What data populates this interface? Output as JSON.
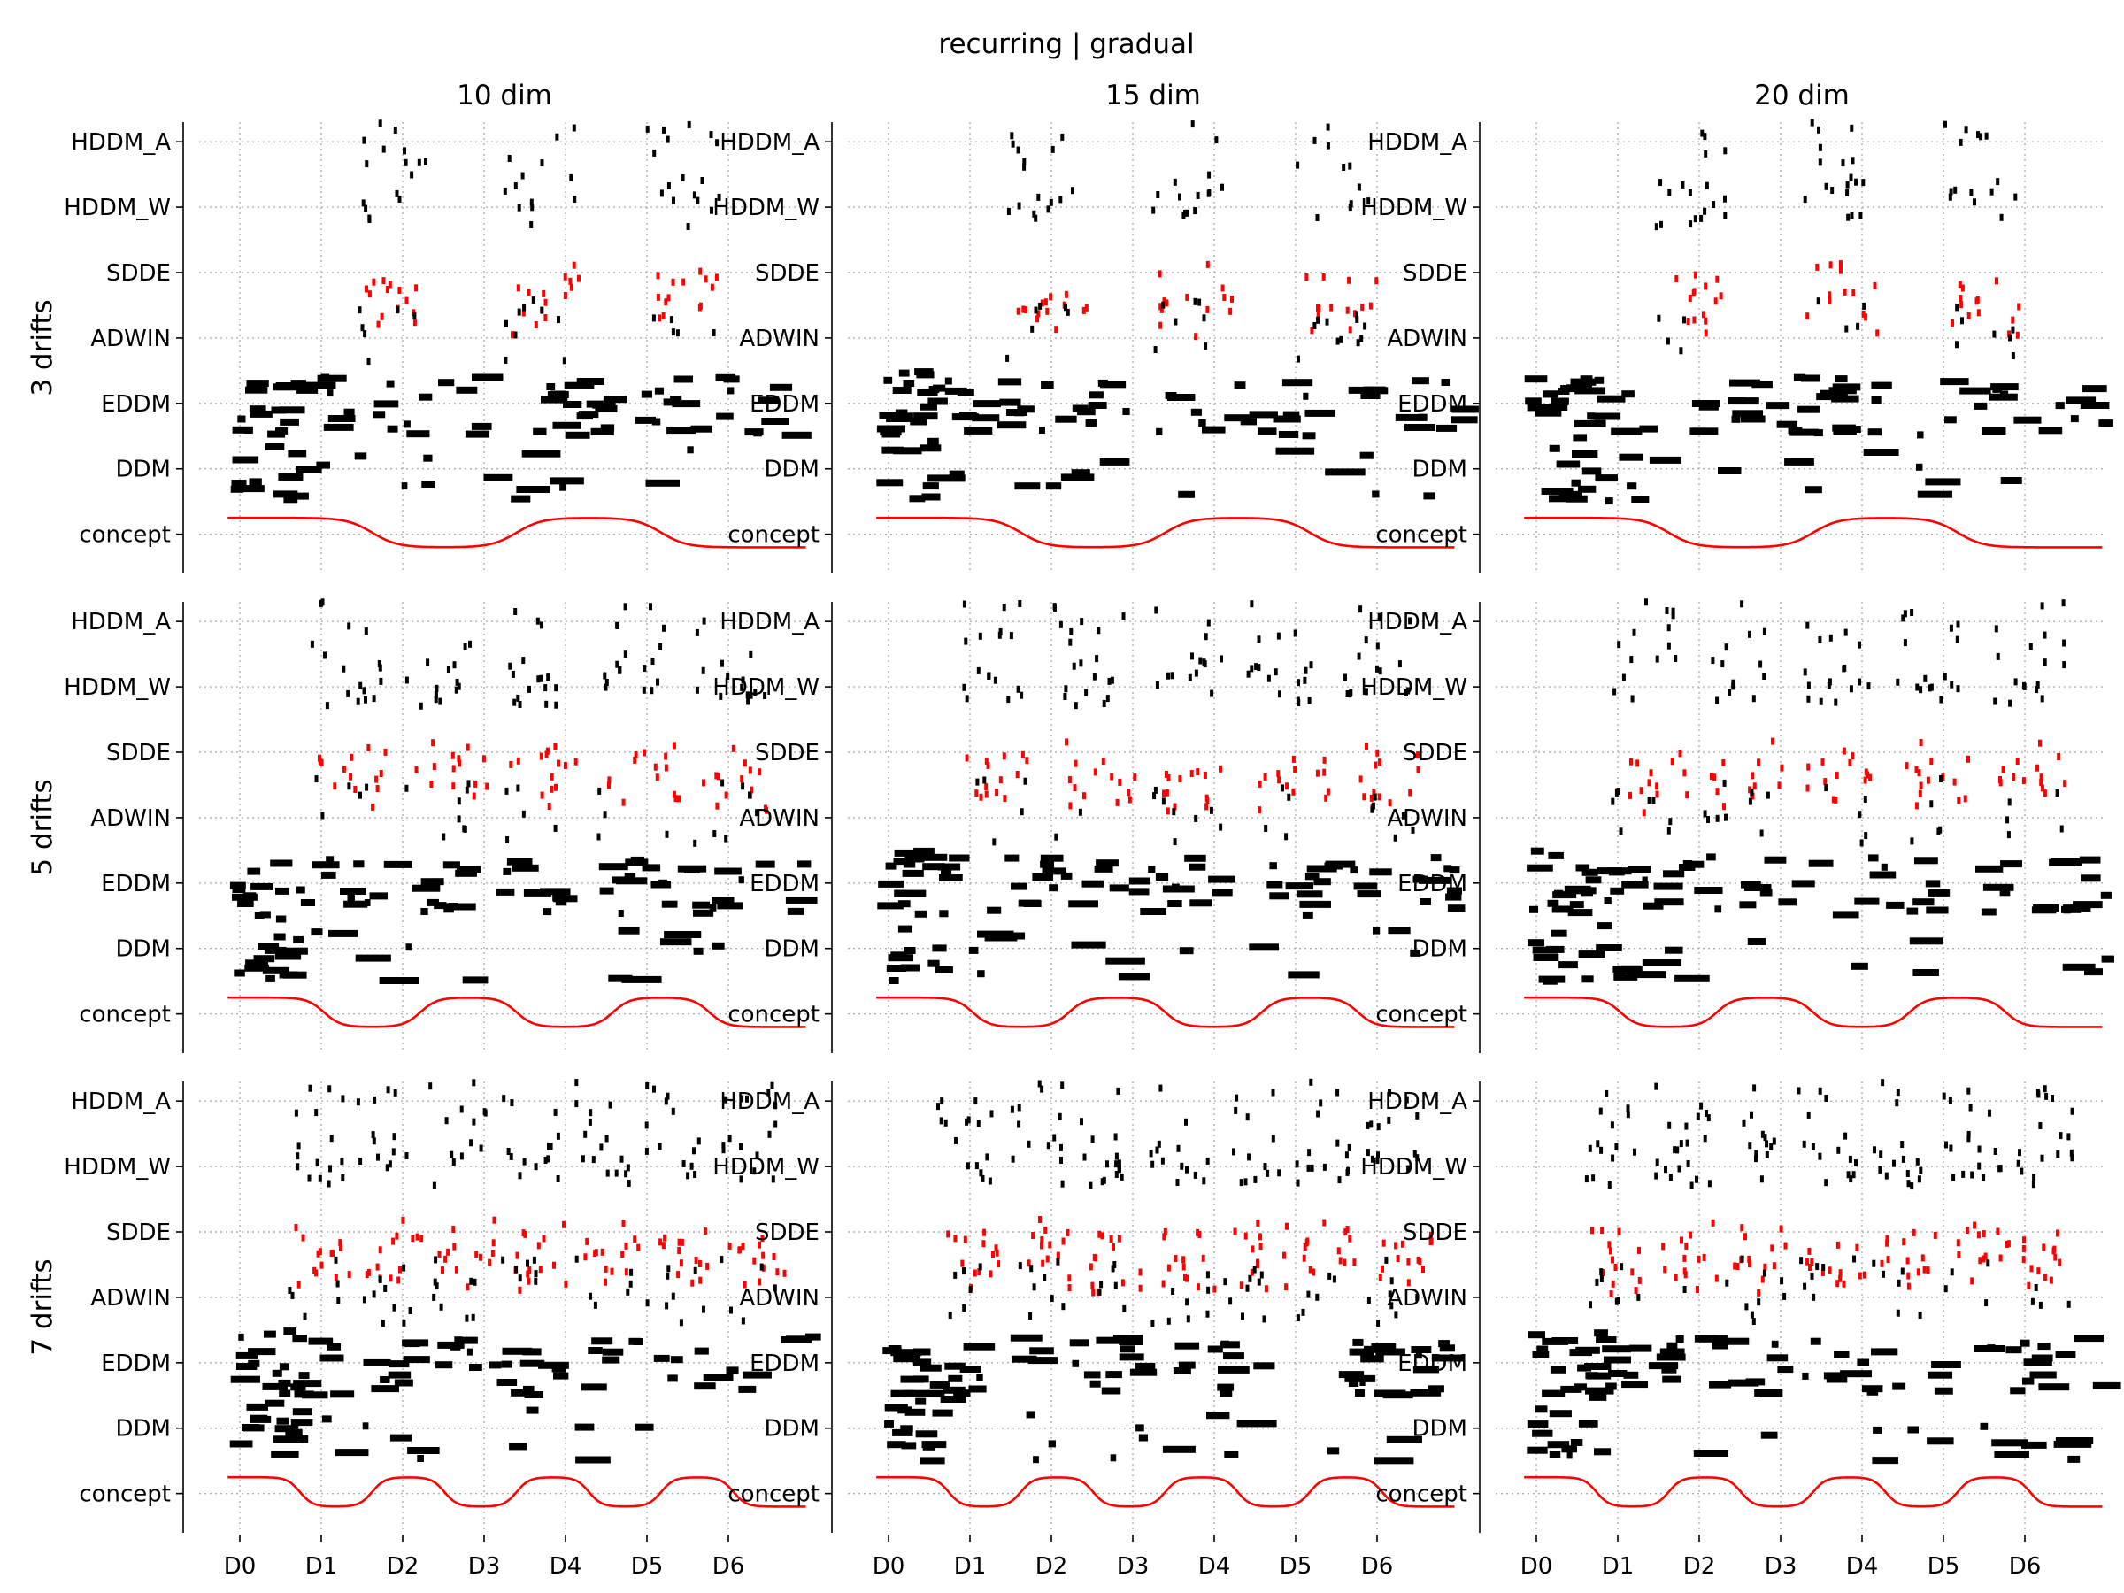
{
  "chart_data": {
    "type": "scatter",
    "title": "recurring | gradual",
    "columns": [
      "10 dim",
      "15 dim",
      "20 dim"
    ],
    "rows": [
      "3 drifts",
      "5 drifts",
      "7 drifts"
    ],
    "y_categories": [
      "concept",
      "DDM",
      "EDDM",
      "ADWIN",
      "SDDE",
      "HDDM_W",
      "HDDM_A"
    ],
    "x_tick_labels": [
      "D0",
      "D1",
      "D2",
      "D3",
      "D4",
      "D5",
      "D6"
    ],
    "x_tick_positions": [
      0.5,
      1.5,
      2.5,
      3.5,
      4.5,
      5.5,
      6.5
    ],
    "xlim": [
      0,
      7.5
    ],
    "ylim": [
      -0.6,
      6.3
    ],
    "grid": true,
    "concept_curve": {
      "name": "concept",
      "color": "#ff0000",
      "high": 0.25,
      "low": -0.2,
      "note": "alternates between two concepts at each drift"
    },
    "colors": {
      "detections": "#000000",
      "sdde": "#ff0000",
      "concept": "#ff0000"
    },
    "panels": [
      {
        "row": "3 drifts",
        "col": "10 dim",
        "drifts": 3
      },
      {
        "row": "3 drifts",
        "col": "15 dim",
        "drifts": 3
      },
      {
        "row": "3 drifts",
        "col": "20 dim",
        "drifts": 3
      },
      {
        "row": "5 drifts",
        "col": "10 dim",
        "drifts": 5
      },
      {
        "row": "5 drifts",
        "col": "15 dim",
        "drifts": 5
      },
      {
        "row": "5 drifts",
        "col": "20 dim",
        "drifts": 5
      },
      {
        "row": "7 drifts",
        "col": "10 dim",
        "drifts": 7
      },
      {
        "row": "7 drifts",
        "col": "15 dim",
        "drifts": 7
      },
      {
        "row": "7 drifts",
        "col": "20 dim",
        "drifts": 7
      }
    ]
  }
}
